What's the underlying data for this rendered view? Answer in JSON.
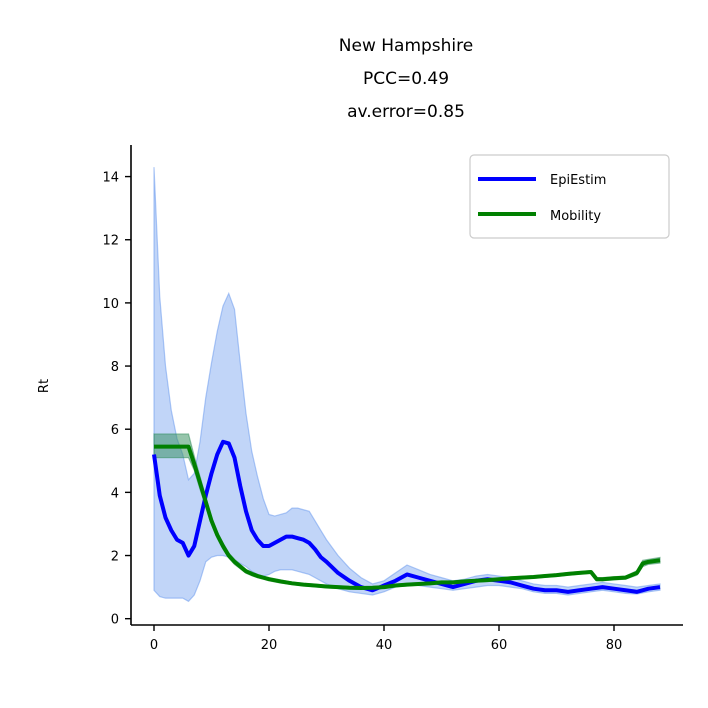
{
  "chart_data": {
    "type": "line",
    "title_lines": [
      "New Hampshire",
      "PCC=0.49",
      "av.error=0.85"
    ],
    "xlabel": "",
    "ylabel": "Rt",
    "xlim": [
      -4,
      92
    ],
    "ylim": [
      -0.2,
      15
    ],
    "xticks": [
      0,
      20,
      40,
      60,
      80
    ],
    "yticks": [
      0,
      2,
      4,
      6,
      8,
      10,
      12,
      14
    ],
    "grid": false,
    "legend_position": "top-right",
    "series": [
      {
        "name": "EpiEstim",
        "color": "#0000ff",
        "band_color": "#6495ed",
        "x": [
          0,
          1,
          2,
          3,
          4,
          5,
          6,
          7,
          8,
          9,
          10,
          11,
          12,
          13,
          14,
          15,
          16,
          17,
          18,
          19,
          20,
          21,
          22,
          23,
          24,
          25,
          26,
          27,
          28,
          29,
          30,
          32,
          34,
          36,
          38,
          40,
          42,
          44,
          46,
          48,
          50,
          52,
          54,
          56,
          58,
          60,
          62,
          64,
          66,
          68,
          70,
          72,
          74,
          76,
          78,
          80,
          82,
          84,
          86,
          88
        ],
        "values": [
          5.2,
          3.9,
          3.2,
          2.8,
          2.5,
          2.4,
          2.0,
          2.3,
          3.1,
          3.9,
          4.6,
          5.2,
          5.6,
          5.55,
          5.1,
          4.2,
          3.4,
          2.8,
          2.5,
          2.3,
          2.3,
          2.4,
          2.5,
          2.6,
          2.6,
          2.55,
          2.5,
          2.4,
          2.2,
          1.95,
          1.8,
          1.45,
          1.2,
          1.0,
          0.9,
          1.05,
          1.2,
          1.4,
          1.3,
          1.2,
          1.1,
          1.0,
          1.1,
          1.2,
          1.25,
          1.2,
          1.15,
          1.05,
          0.95,
          0.9,
          0.9,
          0.85,
          0.9,
          0.95,
          1.0,
          0.95,
          0.9,
          0.85,
          0.95,
          1.0
        ],
        "lower": [
          0.9,
          0.7,
          0.65,
          0.65,
          0.65,
          0.65,
          0.55,
          0.75,
          1.2,
          1.8,
          1.95,
          2.0,
          2.0,
          1.95,
          1.85,
          1.75,
          1.65,
          1.5,
          1.4,
          1.35,
          1.4,
          1.5,
          1.55,
          1.55,
          1.55,
          1.5,
          1.45,
          1.4,
          1.3,
          1.2,
          1.1,
          0.95,
          0.85,
          0.8,
          0.75,
          0.85,
          1.0,
          1.1,
          1.05,
          1.0,
          0.95,
          0.9,
          0.95,
          1.0,
          1.05,
          1.05,
          1.0,
          0.95,
          0.85,
          0.8,
          0.8,
          0.75,
          0.8,
          0.85,
          0.9,
          0.85,
          0.8,
          0.78,
          0.85,
          0.9
        ],
        "upper": [
          14.3,
          10.2,
          8.0,
          6.6,
          5.7,
          5.2,
          4.4,
          4.6,
          5.6,
          7.0,
          8.1,
          9.1,
          9.9,
          10.3,
          9.8,
          8.1,
          6.5,
          5.3,
          4.5,
          3.8,
          3.3,
          3.25,
          3.3,
          3.35,
          3.5,
          3.5,
          3.45,
          3.4,
          3.1,
          2.8,
          2.5,
          2.0,
          1.6,
          1.3,
          1.1,
          1.2,
          1.45,
          1.7,
          1.55,
          1.4,
          1.3,
          1.2,
          1.25,
          1.35,
          1.4,
          1.35,
          1.3,
          1.2,
          1.1,
          1.05,
          1.05,
          1.0,
          1.05,
          1.1,
          1.15,
          1.1,
          1.05,
          1.0,
          1.05,
          1.1
        ]
      },
      {
        "name": "Mobility",
        "color": "#008000",
        "band_color": "#2e8b57",
        "x": [
          0,
          1,
          2,
          3,
          4,
          5,
          6,
          7,
          8,
          9,
          10,
          11,
          12,
          13,
          14,
          15,
          16,
          17,
          18,
          19,
          20,
          22,
          24,
          26,
          28,
          30,
          32,
          34,
          36,
          38,
          40,
          42,
          44,
          46,
          48,
          50,
          52,
          54,
          56,
          58,
          60,
          62,
          64,
          66,
          68,
          70,
          72,
          74,
          76,
          77,
          78,
          80,
          82,
          84,
          85,
          86,
          88
        ],
        "values": [
          5.45,
          5.45,
          5.45,
          5.45,
          5.45,
          5.45,
          5.45,
          4.9,
          4.3,
          3.7,
          3.1,
          2.65,
          2.3,
          2.0,
          1.8,
          1.65,
          1.5,
          1.42,
          1.35,
          1.3,
          1.25,
          1.18,
          1.12,
          1.08,
          1.05,
          1.02,
          1.0,
          0.98,
          0.97,
          0.98,
          1.0,
          1.05,
          1.08,
          1.1,
          1.12,
          1.15,
          1.15,
          1.18,
          1.2,
          1.22,
          1.25,
          1.28,
          1.3,
          1.32,
          1.35,
          1.38,
          1.42,
          1.45,
          1.48,
          1.25,
          1.25,
          1.28,
          1.3,
          1.45,
          1.75,
          1.8,
          1.85
        ],
        "lower": [
          5.1,
          5.1,
          5.1,
          5.1,
          5.1,
          5.1,
          5.1,
          4.7,
          4.1,
          3.55,
          3.0,
          2.55,
          2.2,
          1.92,
          1.72,
          1.58,
          1.44,
          1.36,
          1.3,
          1.25,
          1.2,
          1.13,
          1.08,
          1.04,
          1.01,
          0.98,
          0.96,
          0.94,
          0.93,
          0.94,
          0.96,
          1.01,
          1.04,
          1.06,
          1.08,
          1.11,
          1.11,
          1.14,
          1.16,
          1.18,
          1.21,
          1.24,
          1.26,
          1.28,
          1.31,
          1.34,
          1.38,
          1.41,
          1.44,
          1.2,
          1.2,
          1.23,
          1.25,
          1.38,
          1.65,
          1.72,
          1.76
        ],
        "upper": [
          5.85,
          5.85,
          5.85,
          5.85,
          5.85,
          5.85,
          5.85,
          5.15,
          4.5,
          3.85,
          3.2,
          2.75,
          2.4,
          2.08,
          1.88,
          1.72,
          1.56,
          1.48,
          1.4,
          1.35,
          1.3,
          1.23,
          1.16,
          1.12,
          1.09,
          1.06,
          1.04,
          1.02,
          1.01,
          1.02,
          1.04,
          1.09,
          1.12,
          1.14,
          1.16,
          1.19,
          1.19,
          1.22,
          1.24,
          1.26,
          1.29,
          1.32,
          1.34,
          1.36,
          1.39,
          1.42,
          1.46,
          1.49,
          1.52,
          1.3,
          1.3,
          1.33,
          1.35,
          1.52,
          1.85,
          1.88,
          1.94
        ]
      }
    ]
  }
}
